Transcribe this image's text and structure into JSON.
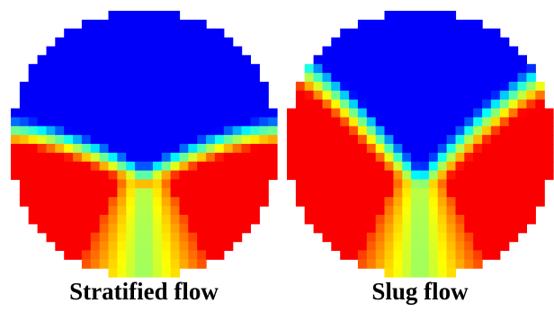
{
  "panels": [
    {
      "caption": "Stratified flow"
    },
    {
      "caption": "Slug flow"
    }
  ]
}
